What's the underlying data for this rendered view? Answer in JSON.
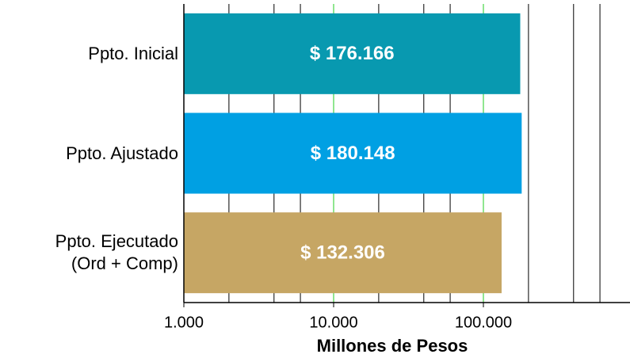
{
  "chart_data": {
    "type": "bar",
    "orientation": "horizontal",
    "categories": [
      "Ppto. Inicial",
      "Ppto. Ajustado",
      "Ppto. Ejecutado\n(Ord + Comp)"
    ],
    "values": [
      176166,
      180148,
      132306
    ],
    "value_labels": [
      "$ 176.166",
      "$ 180.148",
      "$ 132.306"
    ],
    "colors": [
      "#0899b0",
      "#00a0e3",
      "#c6a664"
    ],
    "x_label": "Millones de Pesos",
    "xscale": "log",
    "xlim": [
      1000,
      1000000
    ],
    "xticks": [
      {
        "value": 1000,
        "label": "1.000"
      },
      {
        "value": 10000,
        "label": "10.000"
      },
      {
        "value": 100000,
        "label": "100.000"
      }
    ],
    "xminor": [
      2000,
      4000,
      6000,
      20000,
      40000,
      60000,
      200000,
      400000,
      600000
    ],
    "grid": true,
    "grid_color": "#22cc22",
    "minor_grid_color": "#000000"
  }
}
